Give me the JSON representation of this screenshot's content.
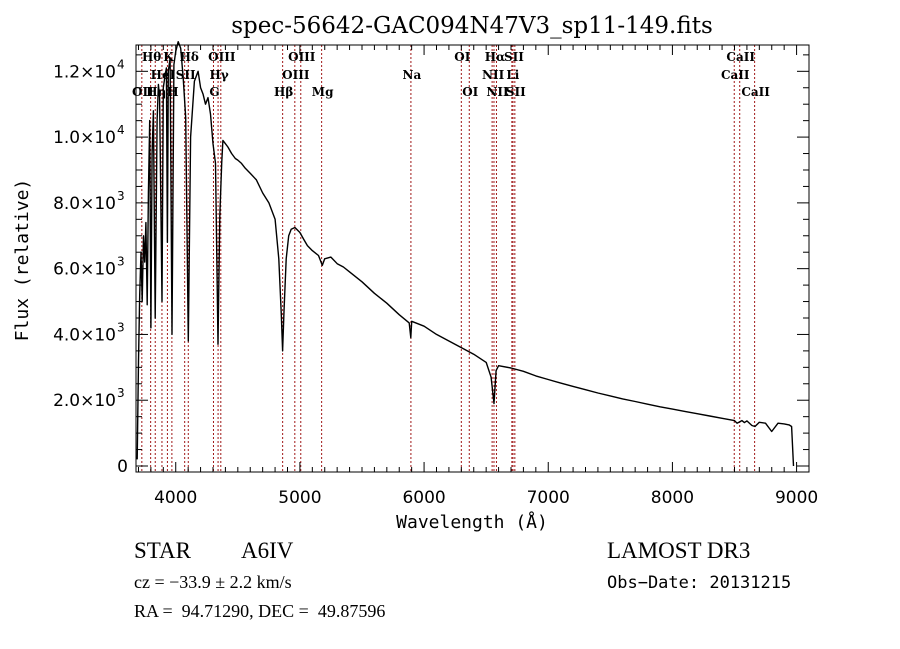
{
  "chart_data": {
    "type": "line",
    "title": "spec-56642-GAC094N47V3_sp11-149.fits",
    "xlabel": "Wavelength (Å)",
    "ylabel": "Flux (relative)",
    "xlim": [
      3680,
      9100
    ],
    "ylim": [
      0,
      12800
    ],
    "grid": false,
    "legend": "none",
    "x_ticks": [
      {
        "value": 4000,
        "label": "4000"
      },
      {
        "value": 5000,
        "label": "5000"
      },
      {
        "value": 6000,
        "label": "6000"
      },
      {
        "value": 7000,
        "label": "7000"
      },
      {
        "value": 8000,
        "label": "8000"
      },
      {
        "value": 9000,
        "label": "9000"
      }
    ],
    "y_ticks": [
      {
        "value": 0,
        "mant": "0",
        "exp": ""
      },
      {
        "value": 2000,
        "mant": "2.0×10",
        "exp": "3"
      },
      {
        "value": 4000,
        "mant": "4.0×10",
        "exp": "3"
      },
      {
        "value": 6000,
        "mant": "6.0×10",
        "exp": "3"
      },
      {
        "value": 8000,
        "mant": "8.0×10",
        "exp": "3"
      },
      {
        "value": 10000,
        "mant": "1.0×10",
        "exp": "4"
      },
      {
        "value": 12000,
        "mant": "1.2×10",
        "exp": "4"
      }
    ],
    "series": [
      {
        "name": "flux",
        "color": "#000000",
        "points": [
          [
            3690,
            200
          ],
          [
            3700,
            3200
          ],
          [
            3710,
            5200
          ],
          [
            3720,
            6500
          ],
          [
            3730,
            5000
          ],
          [
            3740,
            7000
          ],
          [
            3750,
            6200
          ],
          [
            3760,
            7400
          ],
          [
            3770,
            4900
          ],
          [
            3780,
            8300
          ],
          [
            3790,
            10500
          ],
          [
            3800,
            4200
          ],
          [
            3810,
            9500
          ],
          [
            3820,
            10800
          ],
          [
            3835,
            4500
          ],
          [
            3850,
            10500
          ],
          [
            3860,
            11600
          ],
          [
            3870,
            11200
          ],
          [
            3889,
            5000
          ],
          [
            3900,
            11500
          ],
          [
            3915,
            11900
          ],
          [
            3925,
            12100
          ],
          [
            3933,
            6800
          ],
          [
            3940,
            12000
          ],
          [
            3955,
            12400
          ],
          [
            3970,
            4000
          ],
          [
            3985,
            12200
          ],
          [
            4000,
            12600
          ],
          [
            4020,
            12900
          ],
          [
            4040,
            12700
          ],
          [
            4060,
            11800
          ],
          [
            4080,
            10600
          ],
          [
            4101,
            3800
          ],
          [
            4120,
            10000
          ],
          [
            4150,
            11700
          ],
          [
            4180,
            12000
          ],
          [
            4200,
            11500
          ],
          [
            4220,
            11300
          ],
          [
            4240,
            11000
          ],
          [
            4260,
            11200
          ],
          [
            4280,
            10700
          ],
          [
            4300,
            9800
          ],
          [
            4320,
            9200
          ],
          [
            4340,
            3700
          ],
          [
            4355,
            7600
          ],
          [
            4370,
            9200
          ],
          [
            4380,
            9900
          ],
          [
            4400,
            9800
          ],
          [
            4420,
            9700
          ],
          [
            4450,
            9500
          ],
          [
            4480,
            9350
          ],
          [
            4500,
            9300
          ],
          [
            4530,
            9200
          ],
          [
            4560,
            9050
          ],
          [
            4600,
            8900
          ],
          [
            4650,
            8700
          ],
          [
            4700,
            8300
          ],
          [
            4750,
            8000
          ],
          [
            4800,
            7500
          ],
          [
            4830,
            6300
          ],
          [
            4850,
            4600
          ],
          [
            4861,
            3500
          ],
          [
            4872,
            4700
          ],
          [
            4890,
            6300
          ],
          [
            4910,
            7000
          ],
          [
            4930,
            7200
          ],
          [
            4960,
            7250
          ],
          [
            5000,
            7100
          ],
          [
            5030,
            6900
          ],
          [
            5060,
            6700
          ],
          [
            5100,
            6550
          ],
          [
            5150,
            6400
          ],
          [
            5180,
            6100
          ],
          [
            5200,
            6300
          ],
          [
            5250,
            6350
          ],
          [
            5300,
            6150
          ],
          [
            5350,
            6050
          ],
          [
            5400,
            5900
          ],
          [
            5500,
            5600
          ],
          [
            5600,
            5250
          ],
          [
            5700,
            4950
          ],
          [
            5800,
            4600
          ],
          [
            5880,
            4350
          ],
          [
            5893,
            3900
          ],
          [
            5900,
            4400
          ],
          [
            6000,
            4250
          ],
          [
            6100,
            4000
          ],
          [
            6200,
            3800
          ],
          [
            6300,
            3600
          ],
          [
            6400,
            3400
          ],
          [
            6500,
            3150
          ],
          [
            6540,
            2700
          ],
          [
            6563,
            1900
          ],
          [
            6580,
            2900
          ],
          [
            6600,
            3050
          ],
          [
            6700,
            2980
          ],
          [
            6800,
            2880
          ],
          [
            6900,
            2740
          ],
          [
            7000,
            2630
          ],
          [
            7100,
            2520
          ],
          [
            7200,
            2420
          ],
          [
            7300,
            2320
          ],
          [
            7400,
            2220
          ],
          [
            7500,
            2130
          ],
          [
            7600,
            2040
          ],
          [
            7700,
            1960
          ],
          [
            7800,
            1880
          ],
          [
            7900,
            1800
          ],
          [
            8000,
            1730
          ],
          [
            8100,
            1660
          ],
          [
            8200,
            1590
          ],
          [
            8300,
            1520
          ],
          [
            8400,
            1450
          ],
          [
            8500,
            1380
          ],
          [
            8520,
            1300
          ],
          [
            8545,
            1350
          ],
          [
            8560,
            1380
          ],
          [
            8580,
            1320
          ],
          [
            8600,
            1370
          ],
          [
            8640,
            1230
          ],
          [
            8665,
            1200
          ],
          [
            8700,
            1330
          ],
          [
            8750,
            1300
          ],
          [
            8800,
            1050
          ],
          [
            8850,
            1300
          ],
          [
            8900,
            1280
          ],
          [
            8940,
            1250
          ],
          [
            8960,
            1200
          ],
          [
            8975,
            0
          ]
        ]
      }
    ],
    "line_markers": {
      "color": "#a01818",
      "style": "dotted",
      "lines": [
        {
          "wavelength": 3727,
          "label": "OII",
          "row": 3
        },
        {
          "wavelength": 3798,
          "label": "Hθ",
          "row": 1
        },
        {
          "wavelength": 3835,
          "label": "Hη",
          "row": 3
        },
        {
          "wavelength": 3889,
          "label": "HeI",
          "row": 2
        },
        {
          "wavelength": 3933,
          "label": "K",
          "row": 1
        },
        {
          "wavelength": 3969,
          "label": "H",
          "row": 3
        },
        {
          "wavelength": 4072,
          "label": "SII",
          "row": 2
        },
        {
          "wavelength": 4101,
          "label": "Hδ",
          "row": 1
        },
        {
          "wavelength": 4304,
          "label": "G",
          "row": 3
        },
        {
          "wavelength": 4341,
          "label": "Hγ",
          "row": 2
        },
        {
          "wavelength": 4363,
          "label": "OIII",
          "row": 1
        },
        {
          "wavelength": 4861,
          "label": "Hβ",
          "row": 3
        },
        {
          "wavelength": 4959,
          "label": "OIII",
          "row": 2
        },
        {
          "wavelength": 5007,
          "label": "OIII",
          "row": 1
        },
        {
          "wavelength": 5175,
          "label": "Mg",
          "row": 3
        },
        {
          "wavelength": 5894,
          "label": "Na",
          "row": 2
        },
        {
          "wavelength": 6300,
          "label": "OI",
          "row": 1
        },
        {
          "wavelength": 6364,
          "label": "OI",
          "row": 3
        },
        {
          "wavelength": 6548,
          "label": "NII",
          "row": 2
        },
        {
          "wavelength": 6563,
          "label": "Hα",
          "row": 1
        },
        {
          "wavelength": 6583,
          "label": "NII",
          "row": 3
        },
        {
          "wavelength": 6707,
          "label": "Li",
          "row": 2
        },
        {
          "wavelength": 6716,
          "label": "SII",
          "row": 1
        },
        {
          "wavelength": 6731,
          "label": "SII",
          "row": 3
        },
        {
          "wavelength": 8498,
          "label": "CaII",
          "row": 2
        },
        {
          "wavelength": 8542,
          "label": "CaII",
          "row": 1
        },
        {
          "wavelength": 8662,
          "label": "CaII",
          "row": 3
        }
      ]
    }
  },
  "info": {
    "object_class": "STAR",
    "subclass": "A6IV",
    "redshift_line": "cz = −33.9 ± 2.2 km/s",
    "coords_line": "RA =  94.71290, DEC =  49.87596",
    "survey": "LAMOST DR3",
    "obs_date_line": "Obs−Date: 20131215"
  }
}
